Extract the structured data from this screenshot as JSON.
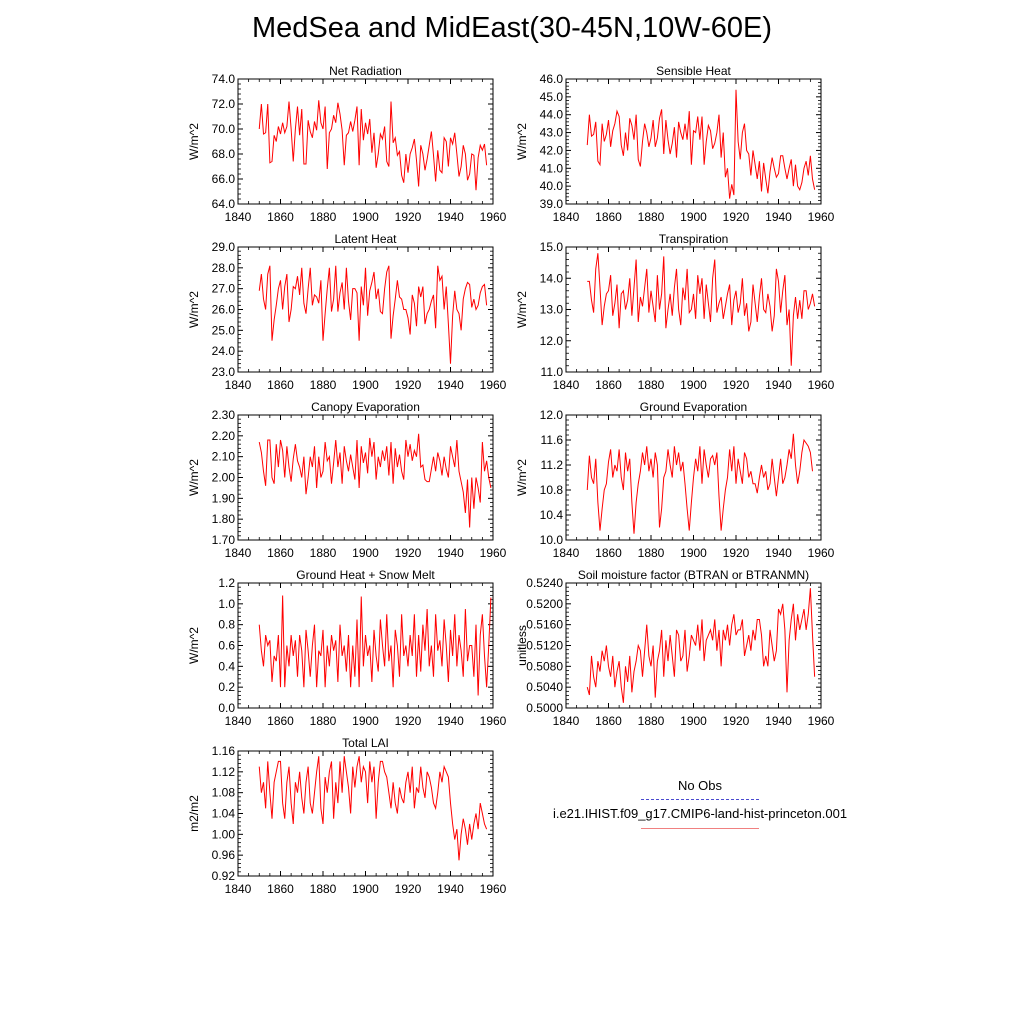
{
  "title": "MedSea and MidEast(30-45N,10W-60E)",
  "colors": {
    "series": "#ff0000",
    "obs": "#4a4ad0"
  },
  "legend": {
    "obs_label": "No Obs",
    "case_label": "i.e21.IHIST.f09_g17.CMIP6-land-hist-princeton.001"
  },
  "chart_data": [
    {
      "type": "line",
      "title": "Net Radiation",
      "ylabel": "W/m^2",
      "xlim": [
        1840,
        1960
      ],
      "ylim": [
        64,
        74
      ],
      "xticks": [
        "1840",
        "1860",
        "1880",
        "1900",
        "1920",
        "1940",
        "1960"
      ],
      "yticks": [
        "64.0",
        "66.0",
        "68.0",
        "70.0",
        "72.0",
        "74.0"
      ],
      "x_start": 1850,
      "values": [
        70.0,
        72.0,
        69.6,
        69.7,
        72.0,
        67.3,
        67.4,
        69.5,
        69.0,
        70.2,
        69.6,
        70.5,
        69.7,
        70.2,
        72.2,
        70.0,
        67.4,
        70.0,
        71.8,
        69.5,
        71.6,
        67.2,
        67.2,
        70.7,
        69.8,
        69.3,
        70.6,
        69.9,
        72.3,
        70.5,
        70.0,
        71.8,
        66.8,
        69.7,
        70.0,
        71.1,
        70.5,
        72.1,
        71.2,
        69.9,
        67.1,
        69.5,
        69.7,
        70.6,
        69.8,
        70.7,
        71.8,
        67.1,
        71.6,
        69.1,
        70.5,
        69.6,
        70.8,
        68.1,
        69.7,
        66.9,
        68.0,
        69.6,
        69.2,
        70.2,
        67.4,
        67.0,
        72.2,
        68.9,
        69.3,
        67.9,
        68.2,
        66.3,
        65.7,
        68.0,
        66.5,
        68.0,
        68.5,
        69.2,
        67.5,
        65.4,
        68.7,
        68.0,
        66.7,
        67.6,
        68.7,
        69.8,
        67.9,
        65.8,
        68.3,
        66.7,
        66.5,
        69.3,
        69.0,
        67.0,
        69.3,
        68.8,
        69.7,
        68.0,
        66.2,
        67.0,
        68.7,
        68.0,
        65.9,
        66.4,
        68.0,
        67.9,
        65.1,
        67.7,
        68.7,
        68.3,
        68.8,
        67.1
      ]
    },
    {
      "type": "line",
      "title": "Sensible Heat",
      "ylabel": "W/m^2",
      "xlim": [
        1840,
        1960
      ],
      "ylim": [
        39,
        46
      ],
      "xticks": [
        "1840",
        "1860",
        "1880",
        "1900",
        "1920",
        "1940",
        "1960"
      ],
      "yticks": [
        "39.0",
        "40.0",
        "41.0",
        "42.0",
        "43.0",
        "44.0",
        "45.0",
        "46.0"
      ],
      "x_start": 1850,
      "values": [
        42.3,
        44.0,
        42.8,
        42.9,
        43.6,
        41.4,
        41.2,
        43.5,
        42.5,
        42.9,
        43.7,
        42.2,
        43.1,
        43.5,
        44.2,
        43.9,
        42.3,
        41.7,
        43.0,
        42.0,
        43.8,
        43.4,
        42.6,
        44.0,
        41.5,
        41.1,
        42.5,
        43.5,
        43.0,
        42.2,
        42.7,
        43.7,
        42.2,
        42.7,
        43.8,
        44.3,
        41.8,
        43.7,
        42.6,
        41.8,
        42.4,
        43.3,
        41.6,
        43.6,
        43.0,
        42.6,
        43.5,
        42.6,
        44.2,
        41.2,
        43.1,
        43.0,
        43.9,
        42.6,
        43.9,
        41.2,
        42.5,
        43.4,
        43.1,
        42.1,
        42.4,
        43.0,
        44.0,
        41.6,
        43.0,
        40.5,
        41.0,
        39.3,
        40.1,
        39.5,
        45.4,
        42.5,
        41.5,
        43.0,
        43.5,
        42.0,
        41.8,
        40.6,
        42.0,
        41.2,
        40.4,
        41.4,
        39.7,
        41.3,
        40.4,
        39.6,
        40.8,
        41.6,
        41.0,
        40.5,
        40.7,
        41.7,
        41.7,
        41.0,
        40.4,
        41.0,
        41.5,
        40.0,
        41.2,
        40.0,
        39.8,
        40.2,
        41.0,
        41.4,
        40.6,
        41.7,
        40.4,
        39.8
      ]
    },
    {
      "type": "line",
      "title": "Latent Heat",
      "ylabel": "W/m^2",
      "xlim": [
        1840,
        1960
      ],
      "ylim": [
        23,
        29
      ],
      "xticks": [
        "1840",
        "1860",
        "1880",
        "1900",
        "1920",
        "1940",
        "1960"
      ],
      "yticks": [
        "23.0",
        "24.0",
        "25.0",
        "26.0",
        "27.0",
        "28.0",
        "29.0"
      ],
      "x_start": 1850,
      "values": [
        26.9,
        27.7,
        26.5,
        26.0,
        27.7,
        28.1,
        24.5,
        25.5,
        26.2,
        27.0,
        27.4,
        26.0,
        27.1,
        27.7,
        25.4,
        26.0,
        27.1,
        27.0,
        27.6,
        26.7,
        28.0,
        26.3,
        25.8,
        27.0,
        28.0,
        26.2,
        26.7,
        26.6,
        26.3,
        27.4,
        24.5,
        25.8,
        27.0,
        28.0,
        25.9,
        26.5,
        28.1,
        25.9,
        26.8,
        27.3,
        26.0,
        28.0,
        26.4,
        25.5,
        27.0,
        27.0,
        26.8,
        24.5,
        27.1,
        26.2,
        28.0,
        25.7,
        26.9,
        27.3,
        27.8,
        26.5,
        27.0,
        25.9,
        25.8,
        27.0,
        27.8,
        28.1,
        24.6,
        25.7,
        26.5,
        27.4,
        26.6,
        26.5,
        26.0,
        26.0,
        25.6,
        24.8,
        26.7,
        26.3,
        25.2,
        27.1,
        26.6,
        27.1,
        25.3,
        25.8,
        26.0,
        26.4,
        26.7,
        25.1,
        28.1,
        27.4,
        27.6,
        26.0,
        27.1,
        25.3,
        23.4,
        25.7,
        26.9,
        26.0,
        25.8,
        25.0,
        26.5,
        27.0,
        27.3,
        27.2,
        26.1,
        26.5,
        26.0,
        26.2,
        26.8,
        27.1,
        27.2,
        26.2
      ]
    },
    {
      "type": "line",
      "title": "Transpiration",
      "ylabel": "W/m^2",
      "xlim": [
        1840,
        1960
      ],
      "ylim": [
        11,
        15
      ],
      "xticks": [
        "1840",
        "1860",
        "1880",
        "1900",
        "1920",
        "1940",
        "1960"
      ],
      "yticks": [
        "11.0",
        "12.0",
        "13.0",
        "14.0",
        "15.0"
      ],
      "x_start": 1850,
      "values": [
        13.9,
        13.9,
        13.3,
        12.9,
        14.3,
        14.8,
        13.7,
        12.5,
        13.1,
        13.5,
        13.6,
        14.1,
        12.8,
        13.2,
        13.8,
        12.4,
        13.5,
        13.6,
        13.0,
        13.3,
        14.0,
        12.8,
        13.7,
        14.6,
        12.6,
        13.4,
        13.1,
        13.7,
        14.3,
        12.9,
        13.6,
        13.1,
        12.6,
        14.1,
        13.0,
        13.5,
        14.7,
        12.4,
        13.0,
        13.5,
        12.8,
        13.7,
        14.3,
        13.0,
        12.5,
        13.7,
        13.3,
        14.3,
        12.9,
        13.0,
        13.5,
        12.7,
        14.1,
        13.5,
        14.0,
        12.7,
        13.8,
        13.2,
        12.6,
        14.0,
        14.6,
        12.9,
        13.2,
        13.4,
        12.7,
        13.1,
        13.5,
        13.8,
        12.5,
        13.3,
        13.6,
        12.9,
        13.2,
        14.0,
        12.8,
        13.2,
        12.3,
        12.6,
        13.8,
        13.2,
        12.6,
        13.4,
        14.0,
        13.0,
        12.9,
        13.5,
        13.1,
        12.3,
        12.8,
        14.3,
        13.9,
        12.9,
        13.6,
        14.1,
        12.5,
        13.0,
        11.2,
        12.8,
        13.4,
        12.7,
        13.3,
        12.7,
        13.6,
        13.6,
        13.0,
        13.2,
        13.5,
        13.1
      ]
    },
    {
      "type": "line",
      "title": "Canopy Evaporation",
      "ylabel": "W/m^2",
      "xlim": [
        1840,
        1960
      ],
      "ylim": [
        1.7,
        2.3
      ],
      "xticks": [
        "1840",
        "1860",
        "1880",
        "1900",
        "1920",
        "1940",
        "1960"
      ],
      "yticks": [
        "1.70",
        "1.80",
        "1.90",
        "2.00",
        "2.10",
        "2.20",
        "2.30"
      ],
      "x_start": 1850,
      "values": [
        2.17,
        2.12,
        2.03,
        1.96,
        2.18,
        2.18,
        2.0,
        1.97,
        2.16,
        2.05,
        2.18,
        2.13,
        2.0,
        2.15,
        2.05,
        1.98,
        2.09,
        2.16,
        2.08,
        2.05,
        2.0,
        2.1,
        1.92,
        2.0,
        2.1,
        2.05,
        2.15,
        1.95,
        2.1,
        2.0,
        2.03,
        2.17,
        2.08,
        2.1,
        1.97,
        2.07,
        2.18,
        2.05,
        2.12,
        1.97,
        2.15,
        2.08,
        2.03,
        2.11,
        2.05,
        1.99,
        2.18,
        1.95,
        2.15,
        2.07,
        2.12,
        2.02,
        2.19,
        2.1,
        2.17,
        1.99,
        2.1,
        2.05,
        2.13,
        2.08,
        2.15,
        2.01,
        2.17,
        1.97,
        2.14,
        2.05,
        2.11,
        2.03,
        1.99,
        2.18,
        2.1,
        2.16,
        2.08,
        2.13,
        2.1,
        2.21,
        2.05,
        2.06,
        1.99,
        1.98,
        1.98,
        2.04,
        2.1,
        2.03,
        2.12,
        2.08,
        2.01,
        2.1,
        2.04,
        2.0,
        2.15,
        2.1,
        2.05,
        2.18,
        2.03,
        1.98,
        1.93,
        1.83,
        1.99,
        1.76,
        2.0,
        1.85,
        2.0,
        1.95,
        1.88,
        2.17,
        2.03,
        2.08,
        2.0,
        1.95
      ]
    },
    {
      "type": "line",
      "title": "Ground Evaporation",
      "ylabel": "W/m^2",
      "xlim": [
        1840,
        1960
      ],
      "ylim": [
        10.0,
        12.0
      ],
      "xticks": [
        "1840",
        "1860",
        "1880",
        "1900",
        "1920",
        "1940",
        "1960"
      ],
      "yticks": [
        "10.0",
        "10.4",
        "10.8",
        "11.2",
        "11.6",
        "12.0"
      ],
      "x_start": 1850,
      "values": [
        10.8,
        11.35,
        11.0,
        10.9,
        11.3,
        10.6,
        10.15,
        10.5,
        10.8,
        10.9,
        11.25,
        11.45,
        11.0,
        11.2,
        11.1,
        11.45,
        11.0,
        10.8,
        11.4,
        11.1,
        11.3,
        10.6,
        10.1,
        10.6,
        10.9,
        11.1,
        11.4,
        11.2,
        11.5,
        11.1,
        11.3,
        11.0,
        11.4,
        11.2,
        10.2,
        10.5,
        11.0,
        11.1,
        11.45,
        11.2,
        11.0,
        11.5,
        11.2,
        11.4,
        11.1,
        11.25,
        10.9,
        10.5,
        10.15,
        10.6,
        11.0,
        11.3,
        11.1,
        11.5,
        10.9,
        11.45,
        11.2,
        11.0,
        11.3,
        11.35,
        11.2,
        11.4,
        10.7,
        10.15,
        10.5,
        10.8,
        11.0,
        11.45,
        11.1,
        11.5,
        10.9,
        11.3,
        11.1,
        10.9,
        11.4,
        11.3,
        11.0,
        11.1,
        10.9,
        10.9,
        10.75,
        11.0,
        11.2,
        11.0,
        11.1,
        10.8,
        10.9,
        11.3,
        11.0,
        10.7,
        11.0,
        11.3,
        10.9,
        11.0,
        11.2,
        11.45,
        11.3,
        11.7,
        11.2,
        10.9,
        11.1,
        11.4,
        11.6,
        11.55,
        11.5,
        11.4,
        11.1
      ]
    },
    {
      "type": "line",
      "title": "Ground Heat + Snow Melt",
      "ylabel": "W/m^2",
      "xlim": [
        1840,
        1960
      ],
      "ylim": [
        0,
        1.2
      ],
      "xticks": [
        "1840",
        "1860",
        "1880",
        "1900",
        "1920",
        "1940",
        "1960"
      ],
      "yticks": [
        "0.0",
        "0.2",
        "0.4",
        "0.6",
        "0.8",
        "1.0",
        "1.2"
      ],
      "x_start": 1850,
      "values": [
        0.8,
        0.55,
        0.4,
        0.7,
        0.6,
        0.65,
        0.25,
        0.5,
        0.45,
        0.7,
        0.2,
        1.08,
        0.2,
        0.6,
        0.4,
        0.7,
        0.5,
        0.65,
        0.3,
        0.7,
        0.55,
        0.2,
        0.75,
        0.55,
        0.3,
        0.6,
        0.8,
        0.2,
        0.55,
        0.5,
        0.75,
        0.2,
        0.6,
        0.4,
        0.7,
        0.55,
        0.65,
        0.25,
        0.8,
        0.5,
        0.6,
        0.35,
        0.7,
        0.2,
        0.6,
        0.3,
        0.85,
        0.2,
        1.07,
        0.4,
        0.7,
        0.5,
        0.6,
        0.25,
        0.75,
        0.5,
        0.35,
        0.85,
        0.6,
        0.4,
        0.9,
        0.45,
        0.6,
        0.2,
        0.75,
        0.6,
        0.3,
        0.9,
        0.5,
        0.6,
        0.4,
        0.7,
        0.5,
        0.9,
        0.3,
        0.7,
        0.35,
        0.8,
        0.55,
        0.95,
        0.4,
        0.6,
        0.3,
        0.9,
        0.55,
        0.65,
        0.4,
        0.85,
        0.6,
        0.25,
        0.75,
        0.5,
        0.9,
        0.4,
        0.7,
        0.55,
        0.3,
        0.95,
        0.45,
        0.6,
        0.6,
        0.3,
        0.8,
        0.12,
        0.7,
        0.9,
        0.5,
        0.2,
        0.6,
        1.06
      ]
    },
    {
      "type": "line",
      "title": "Soil moisture factor (BTRAN or BTRANMN)",
      "ylabel": "unitless",
      "xlim": [
        1840,
        1960
      ],
      "ylim": [
        0.5,
        0.524
      ],
      "xticks": [
        "1840",
        "1860",
        "1880",
        "1900",
        "1920",
        "1940",
        "1960"
      ],
      "yticks": [
        "0.5000",
        "0.5040",
        "0.5080",
        "0.5120",
        "0.5160",
        "0.5200",
        "0.5240"
      ],
      "x_start": 1850,
      "values": [
        0.504,
        0.5025,
        0.51,
        0.506,
        0.504,
        0.509,
        0.507,
        0.511,
        0.509,
        0.512,
        0.508,
        0.506,
        0.51,
        0.504,
        0.507,
        0.509,
        0.504,
        0.501,
        0.508,
        0.505,
        0.51,
        0.503,
        0.507,
        0.509,
        0.512,
        0.511,
        0.506,
        0.511,
        0.516,
        0.51,
        0.508,
        0.512,
        0.502,
        0.509,
        0.511,
        0.515,
        0.506,
        0.513,
        0.509,
        0.514,
        0.51,
        0.506,
        0.515,
        0.514,
        0.509,
        0.51,
        0.515,
        0.507,
        0.51,
        0.514,
        0.513,
        0.512,
        0.516,
        0.511,
        0.517,
        0.509,
        0.513,
        0.514,
        0.515,
        0.513,
        0.517,
        0.511,
        0.515,
        0.508,
        0.515,
        0.513,
        0.516,
        0.512,
        0.516,
        0.518,
        0.514,
        0.515,
        0.515,
        0.517,
        0.51,
        0.512,
        0.514,
        0.511,
        0.515,
        0.513,
        0.517,
        0.517,
        0.514,
        0.508,
        0.51,
        0.508,
        0.515,
        0.512,
        0.509,
        0.511,
        0.519,
        0.518,
        0.52,
        0.515,
        0.503,
        0.513,
        0.517,
        0.52,
        0.513,
        0.518,
        0.515,
        0.517,
        0.519,
        0.515,
        0.518,
        0.523,
        0.514,
        0.506
      ]
    },
    {
      "type": "line",
      "title": "Total LAI",
      "ylabel": "m2/m2",
      "xlim": [
        1840,
        1960
      ],
      "ylim": [
        0.92,
        1.16
      ],
      "xticks": [
        "1840",
        "1860",
        "1880",
        "1900",
        "1920",
        "1940",
        "1960"
      ],
      "yticks": [
        "0.92",
        "0.96",
        "1.00",
        "1.04",
        "1.08",
        "1.12",
        "1.16"
      ],
      "x_start": 1850,
      "values": [
        1.13,
        1.08,
        1.1,
        1.05,
        1.14,
        1.08,
        1.03,
        1.1,
        1.12,
        1.14,
        1.14,
        1.06,
        1.03,
        1.1,
        1.13,
        1.06,
        1.02,
        1.1,
        1.08,
        1.12,
        1.07,
        1.04,
        1.1,
        1.13,
        1.06,
        1.04,
        1.08,
        1.12,
        1.15,
        1.05,
        1.02,
        1.11,
        1.08,
        1.12,
        1.14,
        1.03,
        1.1,
        1.06,
        1.14,
        1.08,
        1.15,
        1.12,
        1.09,
        1.04,
        1.13,
        1.09,
        1.13,
        1.15,
        1.1,
        1.13,
        1.12,
        1.06,
        1.14,
        1.1,
        1.13,
        1.03,
        1.1,
        1.14,
        1.14,
        1.12,
        1.11,
        1.08,
        1.05,
        1.1,
        1.06,
        1.04,
        1.09,
        1.07,
        1.06,
        1.1,
        1.12,
        1.08,
        1.13,
        1.05,
        1.09,
        1.08,
        1.13,
        1.09,
        1.07,
        1.12,
        1.11,
        1.09,
        1.06,
        1.05,
        1.08,
        1.12,
        1.1,
        1.13,
        1.12,
        1.11,
        1.06,
        1.02,
        0.99,
        1.01,
        0.95,
        1.0,
        1.03,
        1.01,
        0.98,
        1.02,
        0.99,
        1.02,
        1.04,
        1.01,
        1.06,
        1.04,
        1.02,
        1.01
      ]
    }
  ]
}
